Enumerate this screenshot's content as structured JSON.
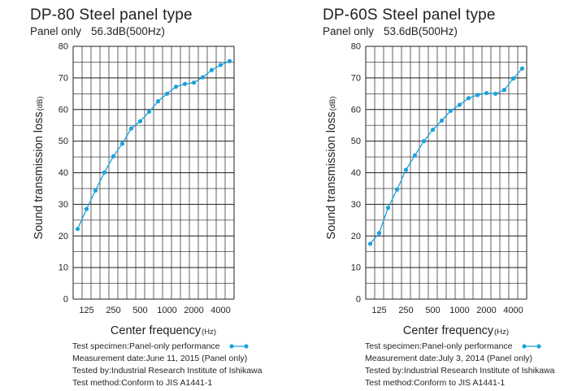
{
  "charts": [
    {
      "title": "DP-80 Steel panel type",
      "subtitle_label": "Panel only",
      "subtitle_value": "56.3dB(500Hz)",
      "info": {
        "line1": "Test specimen:Panel-only performance",
        "line2": "Measurement date:June 11, 2015 (Panel only)",
        "line3": "Tested by:Industrial Research Institute of Ishikawa",
        "line4": "Test method:Conform to JIS A1441-1"
      }
    },
    {
      "title": "DP-60S Steel panel type",
      "subtitle_label": "Panel only",
      "subtitle_value": "53.6dB(500Hz)",
      "info": {
        "line1": "Test specimen:Panel-only performance",
        "line2": "Measurement date:July 3, 2014 (Panel only)",
        "line3": "Tested by:Industrial Research Institute of Ishikawa",
        "line4": "Test method:Conform to JIS A1441-1"
      }
    }
  ],
  "colors": {
    "series": "#1aa3dd",
    "grid": "#231f20"
  },
  "chart_data": [
    {
      "type": "line",
      "title": "DP-80 Steel panel type",
      "xlabel": "Center frequency",
      "xlabel_unit": "(Hz)",
      "ylabel": "Sound transmission loss",
      "ylabel_unit": "(dB)",
      "x": [
        100,
        125,
        160,
        200,
        250,
        315,
        400,
        500,
        630,
        800,
        1000,
        1250,
        1600,
        2000,
        2500,
        3150,
        4000,
        5000
      ],
      "x_tick_labels": [
        "125",
        "250",
        "500",
        "1000",
        "2000",
        "4000"
      ],
      "y_ticks": [
        0,
        10,
        20,
        30,
        40,
        50,
        60,
        70,
        80
      ],
      "ylim": [
        0,
        80
      ],
      "grid": true,
      "series": [
        {
          "values": [
            22.2,
            28.5,
            34.4,
            40.1,
            45.2,
            49.2,
            54.0,
            56.3,
            59.3,
            62.6,
            65.0,
            67.2,
            68.1,
            68.5,
            70.2,
            72.5,
            74.1,
            75.3
          ]
        }
      ]
    },
    {
      "type": "line",
      "title": "DP-60S Steel panel type",
      "xlabel": "Center frequency",
      "xlabel_unit": "(Hz)",
      "ylabel": "Sound transmission loss",
      "ylabel_unit": "(dB)",
      "x": [
        100,
        125,
        160,
        200,
        250,
        315,
        400,
        500,
        630,
        800,
        1000,
        1250,
        1600,
        2000,
        2500,
        3150,
        4000,
        5000
      ],
      "x_tick_labels": [
        "125",
        "250",
        "500",
        "1000",
        "2000",
        "4000"
      ],
      "y_ticks": [
        0,
        10,
        20,
        30,
        40,
        50,
        60,
        70,
        80
      ],
      "ylim": [
        0,
        80
      ],
      "grid": true,
      "series": [
        {
          "values": [
            17.5,
            20.9,
            28.9,
            34.7,
            40.9,
            45.5,
            50.0,
            53.6,
            56.5,
            59.6,
            61.5,
            63.6,
            64.6,
            65.2,
            65.0,
            66.2,
            69.8,
            73.0
          ]
        }
      ]
    }
  ]
}
